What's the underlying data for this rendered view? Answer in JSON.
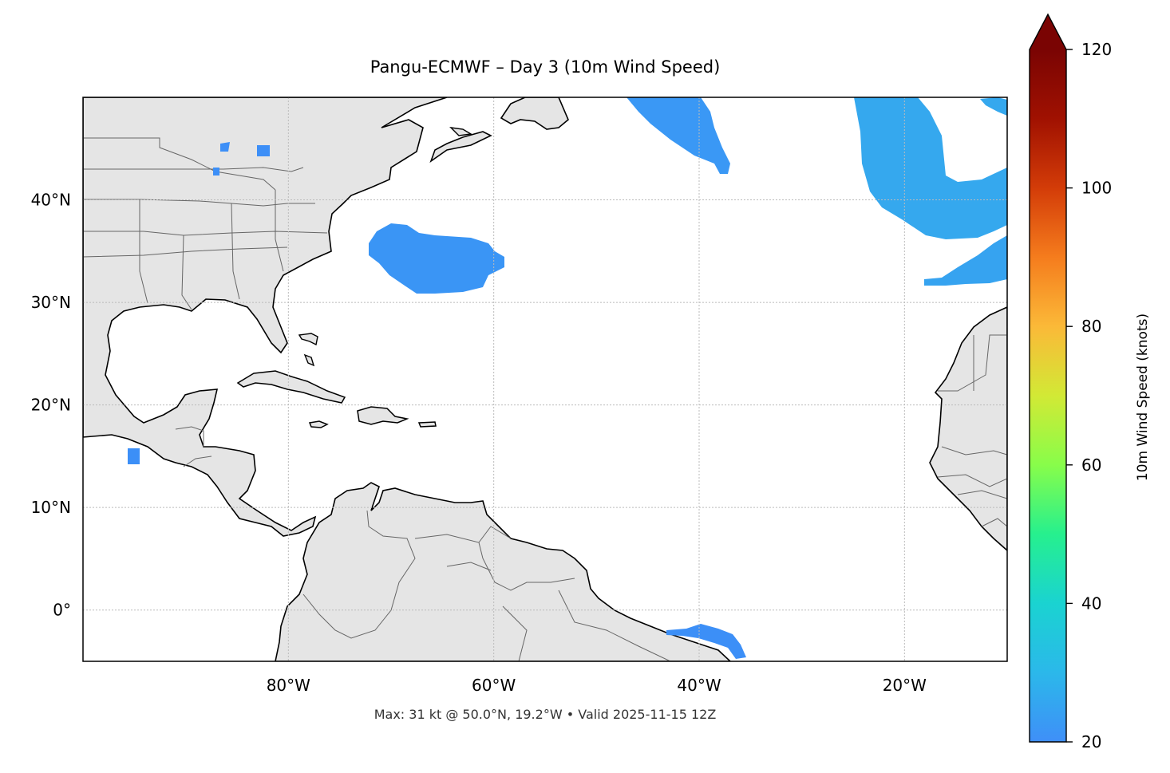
{
  "title": "Pangu-ECMWF – Day 3 (10m Wind Speed)",
  "footer": "Max: 31 kt @ 50.0°N, 19.2°W • Valid 2025-11-15 12Z",
  "map": {
    "lon_range": [
      -100,
      -10
    ],
    "lat_range": [
      -5,
      50
    ],
    "lon_ticks": [
      {
        "value": -80,
        "label": "80°W"
      },
      {
        "value": -60,
        "label": "60°W"
      },
      {
        "value": -40,
        "label": "40°W"
      },
      {
        "value": -20,
        "label": "20°W"
      }
    ],
    "lat_ticks": [
      {
        "value": 40,
        "label": "40°N"
      },
      {
        "value": 30,
        "label": "30°N"
      },
      {
        "value": 20,
        "label": "20°N"
      },
      {
        "value": 10,
        "label": "10°N"
      },
      {
        "value": 0,
        "label": "0°"
      }
    ],
    "gridlines": true,
    "land_color": "#e5e5e5",
    "ocean_color": "#ffffff",
    "coastline_color": "#000000",
    "border_color": "#666666"
  },
  "colorbar": {
    "label": "10m Wind Speed (knots)",
    "range": [
      20,
      120
    ],
    "ticks": [
      {
        "value": 20,
        "label": "20"
      },
      {
        "value": 40,
        "label": "40"
      },
      {
        "value": 60,
        "label": "60"
      },
      {
        "value": 80,
        "label": "80"
      },
      {
        "value": 100,
        "label": "100"
      },
      {
        "value": 120,
        "label": "120"
      }
    ],
    "extend": "max",
    "colormap": [
      "#3f8ff8",
      "#2bb8ea",
      "#1ad3d1",
      "#26f08e",
      "#88fd4a",
      "#d2e935",
      "#fbb938",
      "#f57c1d",
      "#d33c08",
      "#a01101",
      "#7a0403"
    ]
  },
  "wind_regions": [
    {
      "name": "gulf-stream-offshore",
      "color": "#3a95f5"
    },
    {
      "name": "north-central-atlantic",
      "color": "#3a98f5"
    },
    {
      "name": "northeast-atlantic-band",
      "color": "#35a8ee"
    },
    {
      "name": "canary-band",
      "color": "#36a3f0"
    },
    {
      "name": "equatorial-south",
      "color": "#3c8ff7"
    },
    {
      "name": "pacific-mexico-patch",
      "color": "#3c8ff7"
    },
    {
      "name": "great-lakes-patches",
      "color": "#3d8ff7"
    }
  ]
}
